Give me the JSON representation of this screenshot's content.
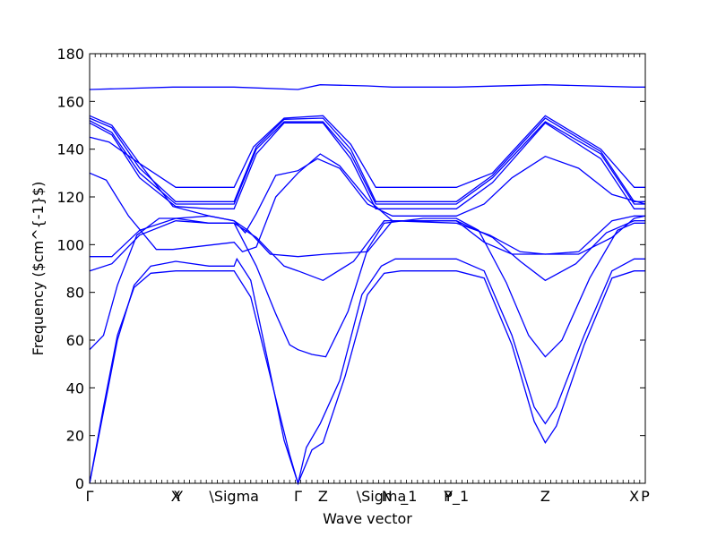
{
  "chart_data": {
    "type": "line",
    "title": "",
    "xlabel": "Wave vector",
    "ylabel": "Frequency ($cm^{-1}$)",
    "ylim": [
      0,
      180
    ],
    "yticks": [
      0,
      20,
      40,
      60,
      80,
      100,
      120,
      140,
      160,
      180
    ],
    "grid": false,
    "line_color": "#0000ff",
    "x_labels": [
      {
        "label": "Γ",
        "x": 0.0
      },
      {
        "label": "X",
        "x": 0.31
      },
      {
        "label": "Y",
        "x": 0.32
      },
      {
        "label": "\\Sigma",
        "x": 0.52
      },
      {
        "label": "Γ",
        "x": 0.75
      },
      {
        "label": "Z",
        "x": 0.84
      },
      {
        "label": "\\Sigma",
        "x": 1.05
      },
      {
        "label": "N",
        "x": 1.07
      },
      {
        "label": "_1",
        "x": 1.12
      },
      {
        "label": "P",
        "x": 1.29
      },
      {
        "label": "Y_1",
        "x": 1.32
      },
      {
        "label": "Z",
        "x": 1.64
      },
      {
        "label": "X",
        "x": 1.96
      },
      {
        "label": "P",
        "x": 2.0
      }
    ],
    "xlim": [
      0,
      2.0
    ],
    "series": [
      {
        "points": [
          [
            0,
            165
          ],
          [
            0.3,
            166
          ],
          [
            0.52,
            166
          ],
          [
            0.75,
            165
          ],
          [
            0.83,
            167
          ],
          [
            1.0,
            166.5
          ],
          [
            1.09,
            166
          ],
          [
            1.32,
            166
          ],
          [
            1.64,
            167
          ],
          [
            1.96,
            166
          ],
          [
            2.0,
            166
          ]
        ]
      },
      {
        "points": [
          [
            0,
            154
          ],
          [
            0.08,
            150
          ],
          [
            0.18,
            134
          ],
          [
            0.31,
            124
          ],
          [
            0.43,
            124
          ],
          [
            0.52,
            124
          ],
          [
            0.59,
            141
          ],
          [
            0.7,
            153
          ],
          [
            0.84,
            154
          ],
          [
            0.94,
            142
          ],
          [
            1.03,
            124
          ],
          [
            1.09,
            124
          ],
          [
            1.32,
            124
          ],
          [
            1.45,
            130
          ],
          [
            1.64,
            154
          ],
          [
            1.84,
            140
          ],
          [
            1.96,
            124
          ],
          [
            2.0,
            124
          ]
        ]
      },
      {
        "points": [
          [
            0,
            153
          ],
          [
            0.08,
            149
          ],
          [
            0.18,
            132
          ],
          [
            0.31,
            118
          ],
          [
            0.43,
            118
          ],
          [
            0.52,
            118
          ],
          [
            0.6,
            141
          ],
          [
            0.7,
            152.5
          ],
          [
            0.84,
            153
          ],
          [
            0.94,
            140
          ],
          [
            1.03,
            118
          ],
          [
            1.09,
            118
          ],
          [
            1.32,
            118
          ],
          [
            1.45,
            129
          ],
          [
            1.64,
            153
          ],
          [
            1.84,
            139
          ],
          [
            1.96,
            118
          ],
          [
            2.0,
            118
          ]
        ]
      },
      {
        "points": [
          [
            0,
            152
          ],
          [
            0.08,
            147
          ],
          [
            0.18,
            130
          ],
          [
            0.31,
            117
          ],
          [
            0.43,
            117
          ],
          [
            0.52,
            117
          ],
          [
            0.6,
            140
          ],
          [
            0.7,
            151.5
          ],
          [
            0.84,
            151.5
          ],
          [
            0.94,
            138
          ],
          [
            1.03,
            117
          ],
          [
            1.09,
            117
          ],
          [
            1.32,
            117
          ],
          [
            1.45,
            128
          ],
          [
            1.64,
            151.5
          ],
          [
            1.84,
            138
          ],
          [
            1.96,
            117
          ],
          [
            2.0,
            117
          ]
        ]
      },
      {
        "points": [
          [
            0,
            151
          ],
          [
            0.08,
            146
          ],
          [
            0.18,
            128
          ],
          [
            0.31,
            116
          ],
          [
            0.43,
            115
          ],
          [
            0.52,
            115
          ],
          [
            0.6,
            138
          ],
          [
            0.7,
            151
          ],
          [
            0.84,
            151
          ],
          [
            0.94,
            136
          ],
          [
            1.03,
            115
          ],
          [
            1.09,
            115
          ],
          [
            1.32,
            115
          ],
          [
            1.45,
            126
          ],
          [
            1.64,
            151
          ],
          [
            1.84,
            136
          ],
          [
            1.96,
            115
          ],
          [
            2.0,
            115
          ]
        ]
      },
      {
        "points": [
          [
            0,
            145
          ],
          [
            0.07,
            143
          ],
          [
            0.18,
            134
          ],
          [
            0.3,
            116
          ],
          [
            0.43,
            112
          ],
          [
            0.52,
            110
          ],
          [
            0.56,
            105
          ],
          [
            0.6,
            113
          ],
          [
            0.67,
            129
          ],
          [
            0.75,
            131
          ],
          [
            0.82,
            136
          ],
          [
            0.9,
            132
          ],
          [
            1.0,
            117
          ],
          [
            1.09,
            112
          ],
          [
            1.32,
            112
          ],
          [
            1.42,
            117
          ],
          [
            1.52,
            128
          ],
          [
            1.64,
            137
          ],
          [
            1.76,
            132
          ],
          [
            1.88,
            121
          ],
          [
            2.0,
            117
          ]
        ]
      },
      {
        "points": [
          [
            0,
            130
          ],
          [
            0.06,
            127
          ],
          [
            0.14,
            112
          ],
          [
            0.24,
            98
          ],
          [
            0.3,
            98
          ],
          [
            0.52,
            101
          ],
          [
            0.55,
            97
          ],
          [
            0.6,
            99
          ],
          [
            0.67,
            120
          ],
          [
            0.75,
            130
          ],
          [
            0.83,
            138
          ],
          [
            0.9,
            133
          ],
          [
            1.0,
            119
          ],
          [
            1.09,
            110
          ],
          [
            1.32,
            109
          ],
          [
            1.44,
            104
          ],
          [
            1.55,
            97
          ],
          [
            1.64,
            96
          ],
          [
            1.76,
            97
          ],
          [
            1.88,
            110
          ],
          [
            1.96,
            112
          ],
          [
            2.0,
            112
          ]
        ]
      },
      {
        "points": [
          [
            0,
            95
          ],
          [
            0.08,
            95
          ],
          [
            0.18,
            106
          ],
          [
            0.31,
            111
          ],
          [
            0.43,
            112
          ],
          [
            0.52,
            110
          ],
          [
            0.57,
            106
          ],
          [
            0.65,
            96
          ],
          [
            0.75,
            95
          ],
          [
            0.85,
            96
          ],
          [
            1.0,
            97
          ],
          [
            1.09,
            110
          ],
          [
            1.2,
            110
          ],
          [
            1.32,
            110
          ],
          [
            1.42,
            101
          ],
          [
            1.52,
            96
          ],
          [
            1.64,
            96
          ],
          [
            1.76,
            96
          ],
          [
            1.88,
            103
          ],
          [
            1.96,
            111
          ],
          [
            2.0,
            112
          ]
        ]
      },
      {
        "points": [
          [
            0,
            89
          ],
          [
            0.08,
            92
          ],
          [
            0.18,
            104
          ],
          [
            0.31,
            110
          ],
          [
            0.43,
            109
          ],
          [
            0.52,
            109
          ],
          [
            0.6,
            103
          ],
          [
            0.7,
            91
          ],
          [
            0.75,
            89
          ],
          [
            0.84,
            85
          ],
          [
            0.95,
            93
          ],
          [
            1.06,
            110
          ],
          [
            1.2,
            110
          ],
          [
            1.32,
            110
          ],
          [
            1.45,
            103
          ],
          [
            1.55,
            93
          ],
          [
            1.64,
            85
          ],
          [
            1.75,
            92
          ],
          [
            1.86,
            105
          ],
          [
            1.96,
            110
          ],
          [
            2.0,
            110
          ]
        ]
      },
      {
        "points": [
          [
            0,
            56
          ],
          [
            0.05,
            62
          ],
          [
            0.1,
            83
          ],
          [
            0.17,
            104
          ],
          [
            0.25,
            111
          ],
          [
            0.31,
            111
          ],
          [
            0.43,
            109
          ],
          [
            0.52,
            109
          ],
          [
            0.6,
            91
          ],
          [
            0.67,
            71
          ],
          [
            0.72,
            58
          ],
          [
            0.75,
            56
          ],
          [
            0.8,
            54
          ],
          [
            0.85,
            53
          ],
          [
            0.93,
            72
          ],
          [
            1.0,
            98
          ],
          [
            1.06,
            109
          ],
          [
            1.2,
            111
          ],
          [
            1.32,
            111
          ],
          [
            1.4,
            106
          ],
          [
            1.5,
            84
          ],
          [
            1.58,
            62
          ],
          [
            1.64,
            53
          ],
          [
            1.7,
            60
          ],
          [
            1.8,
            86
          ],
          [
            1.9,
            106
          ],
          [
            1.96,
            109
          ],
          [
            2.0,
            109
          ]
        ]
      },
      {
        "points": [
          [
            0,
            0
          ],
          [
            0.05,
            30
          ],
          [
            0.1,
            60
          ],
          [
            0.16,
            83
          ],
          [
            0.22,
            91
          ],
          [
            0.31,
            93
          ],
          [
            0.43,
            91
          ],
          [
            0.52,
            91
          ],
          [
            0.53,
            94
          ],
          [
            0.58,
            85
          ],
          [
            0.64,
            52
          ],
          [
            0.7,
            18
          ],
          [
            0.75,
            0
          ],
          [
            0.78,
            15
          ],
          [
            0.83,
            25
          ],
          [
            0.9,
            43
          ],
          [
            0.98,
            79
          ],
          [
            1.05,
            91
          ],
          [
            1.1,
            94
          ],
          [
            1.32,
            94
          ],
          [
            1.42,
            89
          ],
          [
            1.52,
            62
          ],
          [
            1.6,
            32
          ],
          [
            1.64,
            25
          ],
          [
            1.68,
            32
          ],
          [
            1.78,
            62
          ],
          [
            1.88,
            89
          ],
          [
            1.96,
            94
          ],
          [
            2.0,
            94
          ]
        ]
      },
      {
        "points": [
          [
            0,
            0
          ],
          [
            0.05,
            32
          ],
          [
            0.1,
            62
          ],
          [
            0.16,
            82
          ],
          [
            0.22,
            88
          ],
          [
            0.31,
            89
          ],
          [
            0.43,
            89
          ],
          [
            0.52,
            89
          ],
          [
            0.58,
            78
          ],
          [
            0.65,
            45
          ],
          [
            0.72,
            12
          ],
          [
            0.75,
            0
          ],
          [
            0.8,
            14
          ],
          [
            0.84,
            17
          ],
          [
            0.92,
            45
          ],
          [
            1.0,
            79
          ],
          [
            1.06,
            88
          ],
          [
            1.12,
            89
          ],
          [
            1.32,
            89
          ],
          [
            1.42,
            86
          ],
          [
            1.52,
            58
          ],
          [
            1.6,
            26
          ],
          [
            1.64,
            17
          ],
          [
            1.68,
            24
          ],
          [
            1.78,
            58
          ],
          [
            1.88,
            86
          ],
          [
            1.96,
            89
          ],
          [
            2.0,
            89
          ]
        ]
      }
    ]
  }
}
